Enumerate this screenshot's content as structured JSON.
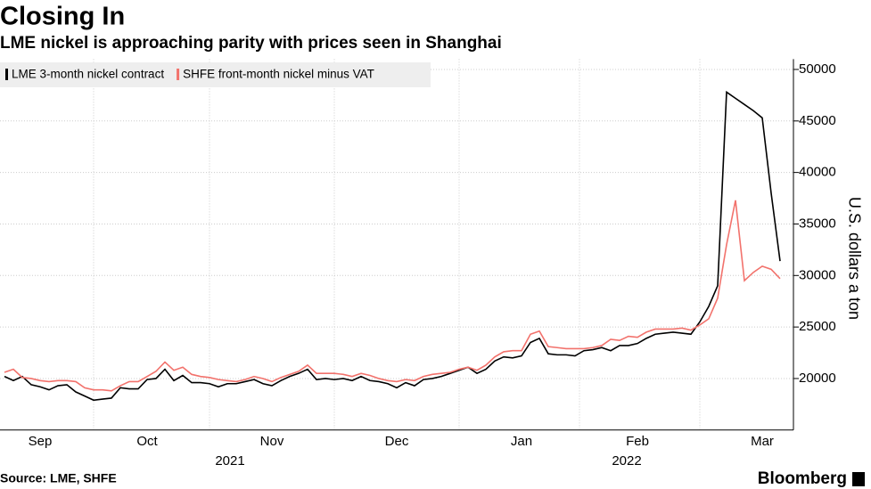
{
  "chart_data": {
    "type": "line",
    "title": "Closing In",
    "subtitle": "LME nickel is approaching parity with prices seen in Shanghai",
    "ylabel": "U.S. dollars a ton",
    "source": "Source: LME, SHFE",
    "brand": "Bloomberg",
    "years": [
      "2021",
      "2022"
    ],
    "categories": [
      null,
      null,
      null,
      null,
      "Sep",
      null,
      null,
      null,
      null,
      null,
      null,
      null,
      null,
      null,
      null,
      null,
      "Oct",
      null,
      null,
      null,
      null,
      null,
      null,
      null,
      null,
      null,
      null,
      null,
      null,
      null,
      "Nov",
      null,
      null,
      null,
      null,
      null,
      null,
      null,
      null,
      null,
      null,
      null,
      null,
      null,
      "Dec",
      null,
      null,
      null,
      null,
      null,
      null,
      null,
      null,
      null,
      null,
      null,
      null,
      null,
      "Jan",
      null,
      null,
      null,
      null,
      null,
      null,
      null,
      null,
      null,
      null,
      null,
      null,
      "Feb",
      null,
      null,
      null,
      null,
      null,
      null,
      null,
      null,
      null,
      null,
      null,
      null,
      null,
      "Mar",
      null,
      null
    ],
    "series": [
      {
        "name": "LME 3-month nickel contract",
        "color": "#000000",
        "values": [
          20200,
          19800,
          20200,
          19400,
          19200,
          18900,
          19300,
          19400,
          18700,
          18300,
          17900,
          18000,
          18100,
          19100,
          19000,
          19000,
          19900,
          20000,
          20900,
          19800,
          20300,
          19600,
          19600,
          19500,
          19200,
          19500,
          19500,
          19700,
          19900,
          19500,
          19300,
          19800,
          20200,
          20500,
          20900,
          19900,
          20000,
          19900,
          20000,
          19800,
          20200,
          19800,
          19700,
          19500,
          19100,
          19600,
          19300,
          19900,
          20000,
          20200,
          20500,
          20800,
          21100,
          20500,
          20900,
          21700,
          22100,
          22000,
          22200,
          23500,
          23900,
          22400,
          22300,
          22300,
          22200,
          22700,
          22800,
          23000,
          22700,
          23200,
          23200,
          23400,
          23900,
          24300,
          24400,
          24500,
          24400,
          24300,
          25500,
          27000,
          29000,
          47800,
          47200,
          46600,
          46000,
          45300,
          38000,
          31400
        ]
      },
      {
        "name": "SHFE front-month nickel minus VAT",
        "color": "#f2726c",
        "values": [
          20600,
          20900,
          20100,
          20000,
          19800,
          19700,
          19800,
          19800,
          19700,
          19100,
          18900,
          18900,
          18800,
          19300,
          19700,
          19700,
          20200,
          20700,
          21600,
          20800,
          21100,
          20400,
          20200,
          20100,
          19900,
          19800,
          19700,
          19900,
          20200,
          20000,
          19700,
          20100,
          20400,
          20700,
          21300,
          20500,
          20500,
          20500,
          20400,
          20200,
          20500,
          20300,
          20000,
          19800,
          19700,
          19900,
          19800,
          20200,
          20400,
          20500,
          20600,
          20900,
          21100,
          20800,
          21300,
          22100,
          22600,
          22700,
          22700,
          24300,
          24600,
          23100,
          23000,
          22900,
          22900,
          22900,
          23000,
          23200,
          23800,
          23700,
          24100,
          24000,
          24500,
          24800,
          24800,
          24800,
          24900,
          24700,
          25200,
          25800,
          27800,
          33000,
          37300,
          29500,
          30300,
          30900,
          30600,
          29700
        ]
      }
    ],
    "ylim": [
      15000,
      51000
    ],
    "yticks": [
      20000,
      25000,
      30000,
      35000,
      40000,
      45000,
      50000
    ],
    "grid": true,
    "legend": "top-left"
  }
}
